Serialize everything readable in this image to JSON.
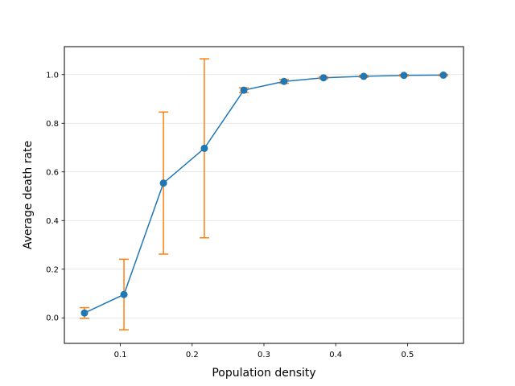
{
  "chart_data": {
    "type": "scatter",
    "title": "",
    "xlabel": "Population density",
    "ylabel": "Average death rate",
    "xlim": [
      0.022,
      0.578
    ],
    "ylim": [
      -0.105,
      1.115
    ],
    "xticks": [
      0.1,
      0.2,
      0.3,
      0.4,
      0.5
    ],
    "xtick_labels": [
      "0.1",
      "0.2",
      "0.3",
      "0.4",
      "0.5"
    ],
    "yticks": [
      0.0,
      0.2,
      0.4,
      0.6,
      0.8,
      1.0
    ],
    "ytick_labels": [
      "0.0",
      "0.2",
      "0.4",
      "0.6",
      "0.8",
      "1.0"
    ],
    "grid": "horizontal",
    "series": [
      {
        "style": "line with markers and error bars",
        "color": "#1f77b4",
        "error_color": "#ff7f0e",
        "points": [
          {
            "x": 0.05,
            "y": 0.02,
            "err": 0.022
          },
          {
            "x": 0.105,
            "y": 0.096,
            "err": 0.145
          },
          {
            "x": 0.16,
            "y": 0.554,
            "err": 0.292
          },
          {
            "x": 0.217,
            "y": 0.697,
            "err": 0.368
          },
          {
            "x": 0.272,
            "y": 0.936,
            "err": 0.01
          },
          {
            "x": 0.328,
            "y": 0.972,
            "err": 0.008
          },
          {
            "x": 0.383,
            "y": 0.987,
            "err": 0.004
          },
          {
            "x": 0.439,
            "y": 0.993,
            "err": 0.004
          },
          {
            "x": 0.495,
            "y": 0.997,
            "err": 0.003
          },
          {
            "x": 0.55,
            "y": 0.998,
            "err": 0.003
          }
        ]
      }
    ]
  }
}
